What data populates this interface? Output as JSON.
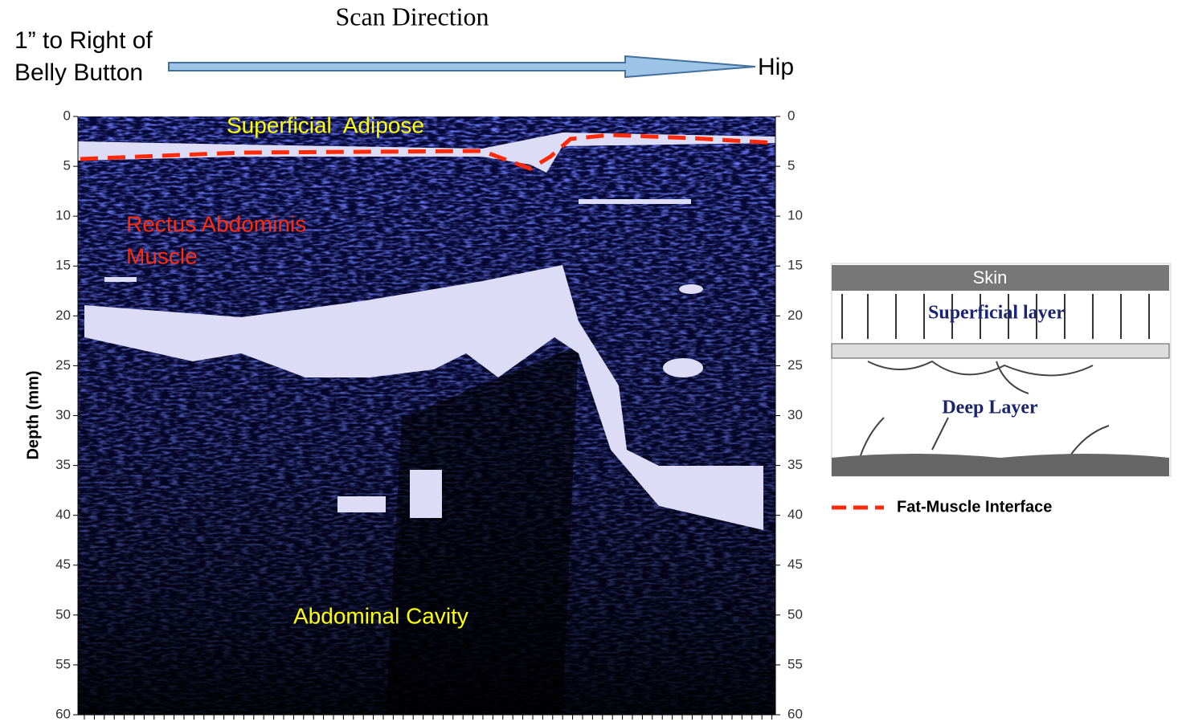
{
  "header": {
    "title": "Scan Direction",
    "start_lines": [
      "1” to Right of",
      "Belly Button"
    ],
    "end": "Hip"
  },
  "image": {
    "y_label": "Depth (mm)",
    "ylim": [
      0,
      60
    ],
    "yticks": [
      0,
      5,
      10,
      15,
      20,
      25,
      30,
      35,
      40,
      45,
      50,
      55,
      60
    ],
    "annotations": {
      "adipose": "Superficial  Adipose",
      "muscle": [
        "Rectus Abdominis",
        "Muscle"
      ],
      "cavity": "Abdominal Cavity"
    }
  },
  "diagram": {
    "skin": "Skin",
    "superficial": "Superficial layer",
    "deep": "Deep Layer"
  },
  "legend": {
    "label": "Fat-Muscle Interface"
  }
}
